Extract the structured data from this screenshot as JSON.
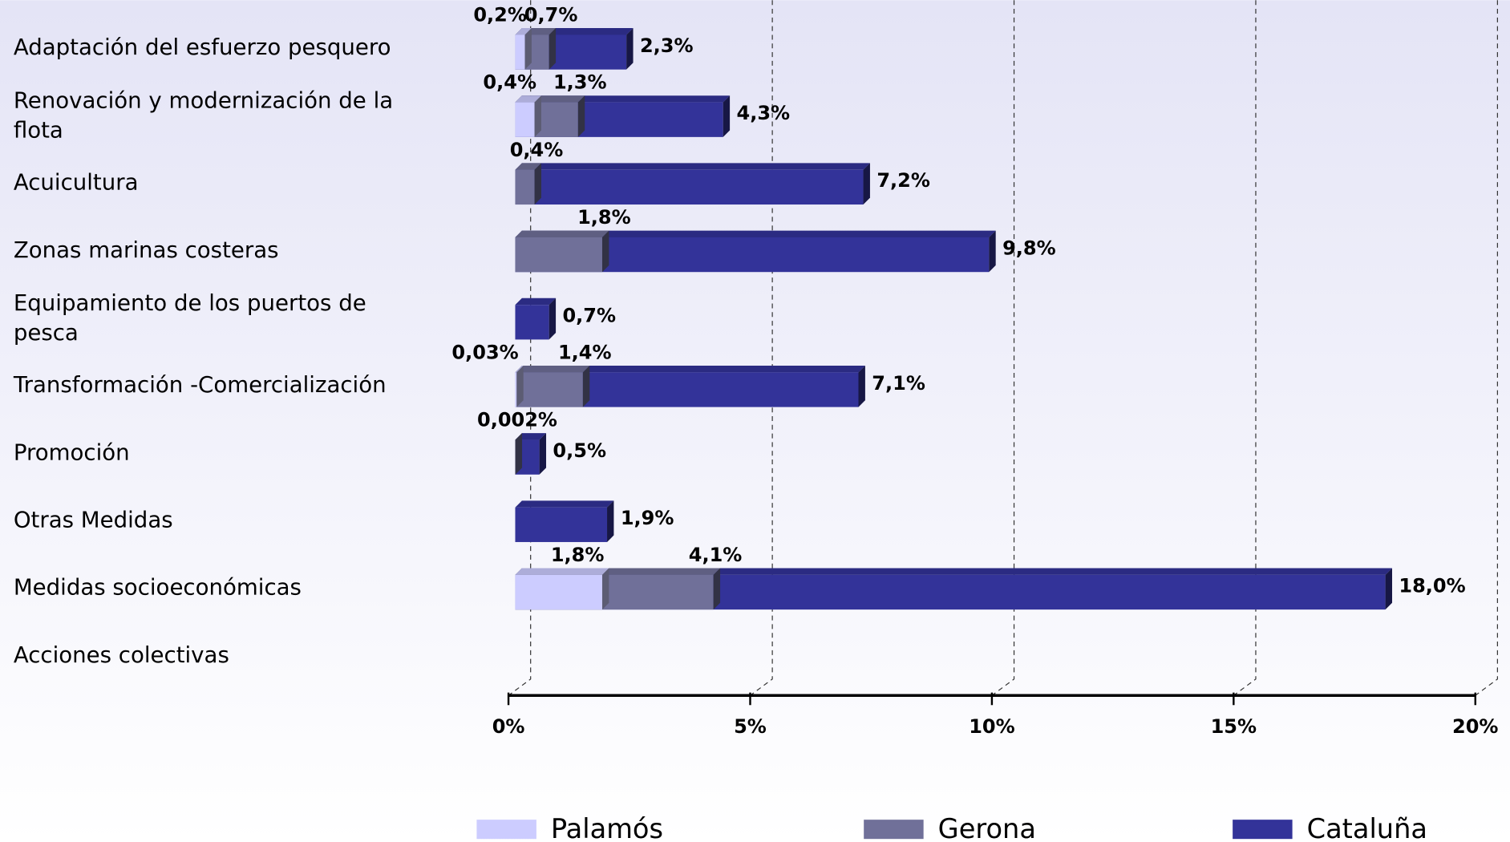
{
  "chart_data": {
    "type": "bar",
    "orientation": "horizontal",
    "categories": [
      "Adaptación del esfuerzo pesquero",
      "Renovación y modernización de la flota",
      "Acuicultura",
      "Zonas marinas costeras",
      "Equipamiento de los puertos de pesca",
      "Transformación -Comercialización",
      "Promoción",
      "Otras Medidas",
      "Medidas socioeconómicas",
      "Acciones colectivas"
    ],
    "series": [
      {
        "name": "Palamós",
        "color": "#ccccff",
        "values": [
          0.2,
          0.4,
          null,
          null,
          null,
          0.03,
          null,
          null,
          1.8,
          null
        ],
        "value_labels": [
          "0,2%",
          "0,4%",
          null,
          null,
          null,
          "0,03%",
          null,
          null,
          "1,8%",
          null
        ]
      },
      {
        "name": "Gerona",
        "color": "#707099",
        "values": [
          0.7,
          1.3,
          0.4,
          1.8,
          null,
          1.4,
          0.002,
          null,
          4.1,
          null
        ],
        "value_labels": [
          "0,7%",
          "1,3%",
          "0,4%",
          "1,8%",
          null,
          "1,4%",
          "0,002%",
          null,
          "4,1%",
          null
        ]
      },
      {
        "name": "Cataluña",
        "color": "#333399",
        "values": [
          2.3,
          4.3,
          7.2,
          9.8,
          0.7,
          7.1,
          0.5,
          1.9,
          18.0,
          null
        ],
        "value_labels": [
          "2,3%",
          "4,3%",
          "7,2%",
          "9,8%",
          "0,7%",
          "7,1%",
          "0,5%",
          "1,9%",
          "18,0%",
          null
        ]
      }
    ],
    "xlim": [
      0,
      20
    ],
    "xticks": [
      {
        "value": 0,
        "label": "0%"
      },
      {
        "value": 5,
        "label": "5%"
      },
      {
        "value": 10,
        "label": "10%"
      },
      {
        "value": 15,
        "label": "15%"
      },
      {
        "value": 20,
        "label": "20%"
      }
    ],
    "grid": true,
    "legend": "bottom"
  }
}
